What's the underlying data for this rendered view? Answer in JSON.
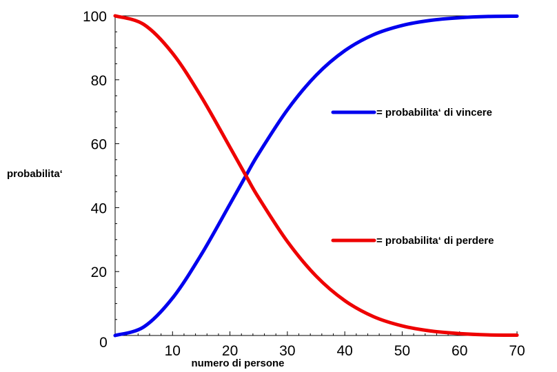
{
  "chart_data": {
    "type": "line",
    "title": "",
    "xlabel": "numero di persone",
    "ylabel": "probabilita‘",
    "xlim": [
      0,
      70
    ],
    "ylim": [
      0,
      100
    ],
    "x_ticks": [
      10,
      20,
      30,
      40,
      50,
      60,
      70
    ],
    "x_origin_label": "0",
    "y_ticks": [
      0,
      20,
      40,
      60,
      80,
      100
    ],
    "grid": false,
    "legend_placement": "right",
    "x": [
      0,
      5,
      10,
      15,
      20,
      23,
      25,
      30,
      35,
      40,
      45,
      50,
      55,
      60,
      65,
      70
    ],
    "series": [
      {
        "name": "= probabilita‘ di vincere",
        "color": "#0000ee",
        "values": [
          0,
          2.7,
          11.7,
          25.3,
          41.1,
          50.7,
          56.9,
          70.6,
          81.4,
          89.1,
          94.1,
          97.0,
          98.6,
          99.4,
          99.8,
          99.9
        ]
      },
      {
        "name": "= probabilita‘ di perdere",
        "color": "#ee0000",
        "values": [
          100,
          97.3,
          88.3,
          74.7,
          58.9,
          49.3,
          43.1,
          29.4,
          18.6,
          10.9,
          5.9,
          3.0,
          1.4,
          0.6,
          0.2,
          0.1
        ]
      }
    ]
  }
}
